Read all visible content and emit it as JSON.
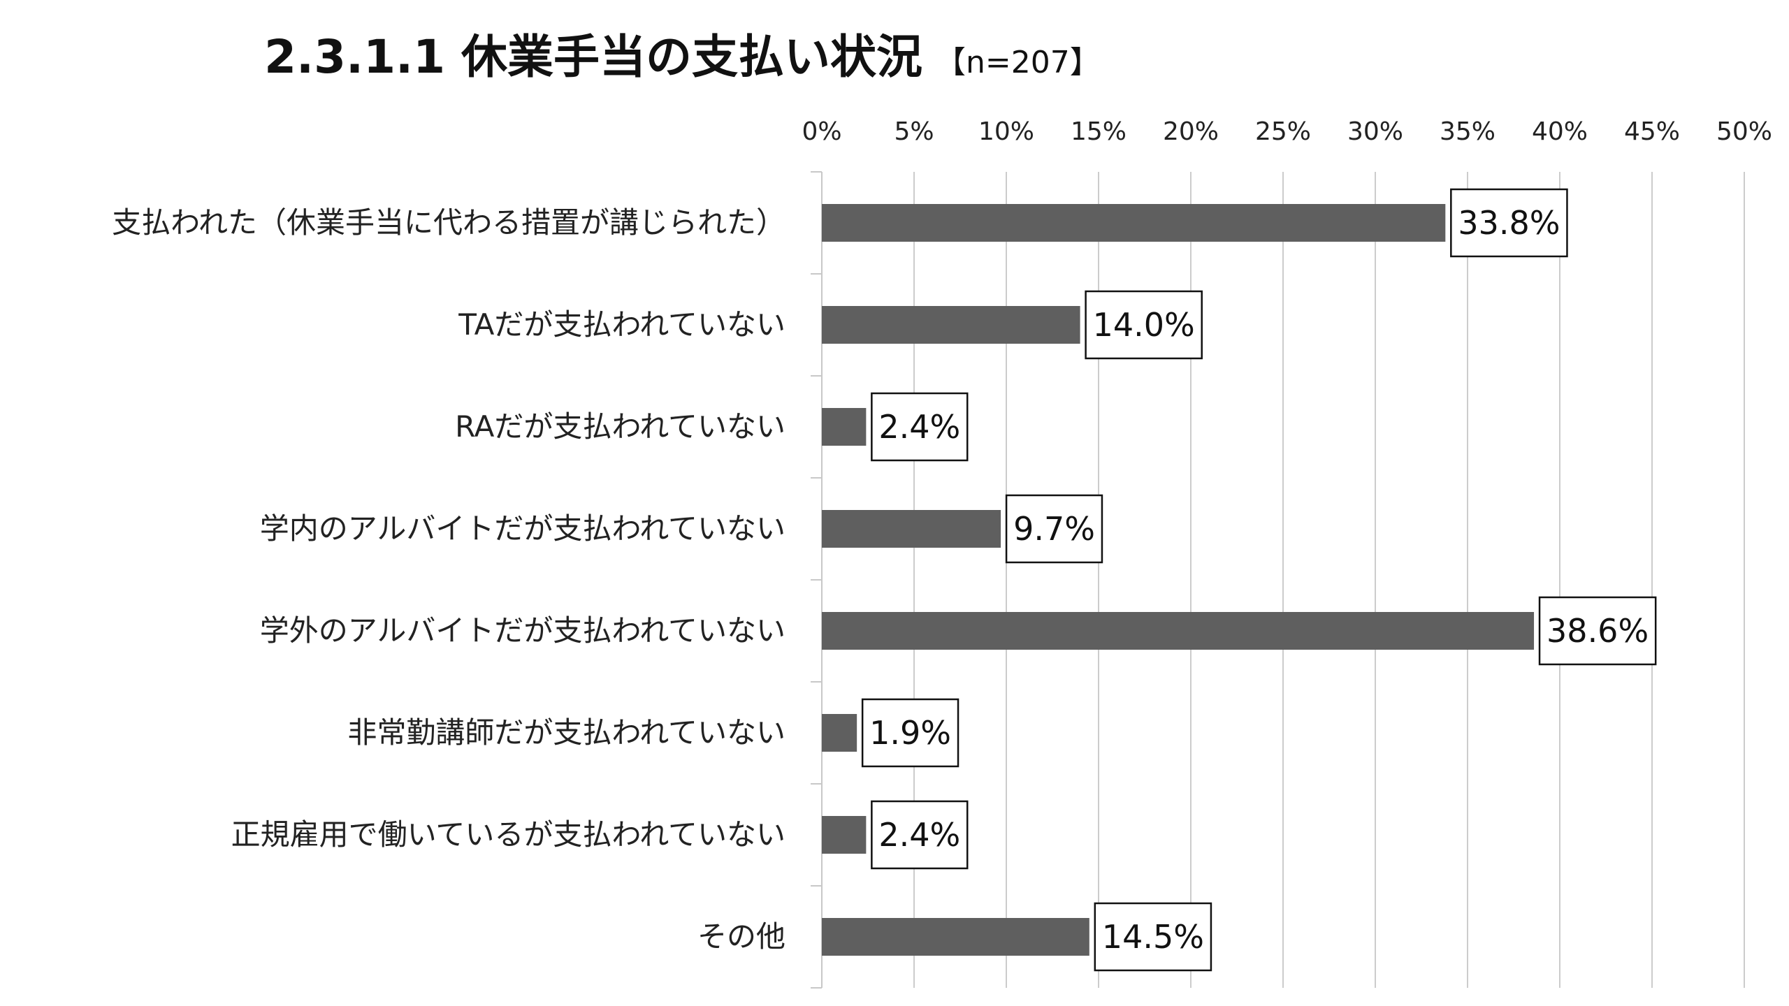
{
  "chart_data": {
    "type": "bar",
    "orientation": "horizontal",
    "title": "2.3.1.1 休業手当の支払い状況",
    "subtitle": "【n=207】",
    "categories": [
      "支払われた（休業手当に代わる措置が講じられた）",
      "TAだが支払われていない",
      "RAだが支払われていない",
      "学内のアルバイトだが支払われていない",
      "学外のアルバイトだが支払われていない",
      "非常勤講師だが支払われていない",
      "正規雇用で働いているが支払われていない",
      "その他"
    ],
    "values": [
      33.8,
      14.0,
      2.4,
      9.7,
      38.6,
      1.9,
      2.4,
      14.5
    ],
    "data_labels": [
      "33.8%",
      "14.0%",
      "2.4%",
      "9.7%",
      "38.6%",
      "1.9%",
      "2.4%",
      "14.5%"
    ],
    "xticks": [
      0,
      5,
      10,
      15,
      20,
      25,
      30,
      35,
      40,
      45,
      50
    ],
    "xtick_labels": [
      "0%",
      "5%",
      "10%",
      "15%",
      "20%",
      "25%",
      "30%",
      "35%",
      "40%",
      "45%",
      "50%"
    ],
    "xlim": [
      0,
      50
    ],
    "xlabel": "",
    "ylabel": "",
    "x_axis_position": "top",
    "grid": true,
    "legend": false,
    "colors": {
      "bar": "#5f5f5f",
      "grid": "#cccccc",
      "axis": "#c8c8c8",
      "label_box_border": "#111111",
      "label_box_fill": "#ffffff"
    }
  }
}
